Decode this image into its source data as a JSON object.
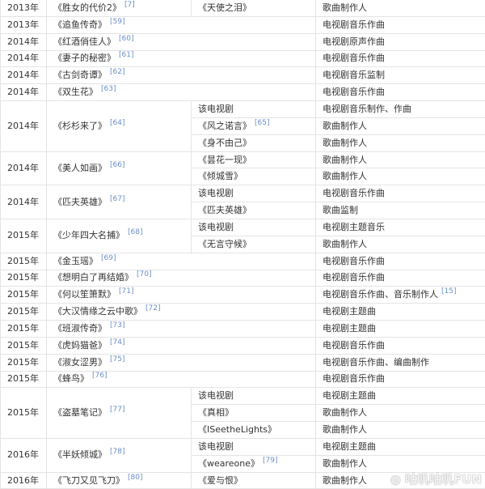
{
  "rows": [
    {
      "year": "2013年",
      "title": "《胜女的代价2》",
      "ref": "[7]",
      "songs": [
        {
          "song": "《天使之泪》",
          "role": "歌曲制作人"
        }
      ]
    },
    {
      "year": "2013年",
      "title": "《追鱼传奇》",
      "ref": "[59]",
      "role": "电视剧音乐作曲"
    },
    {
      "year": "2014年",
      "title": "《红酒俏佳人》",
      "ref": "[60]",
      "role": "电视剧原声作曲"
    },
    {
      "year": "2014年",
      "title": "《妻子的秘密》",
      "ref": "[61]",
      "role": "电视剧音乐作曲"
    },
    {
      "year": "2014年",
      "title": "《古剑奇谭》",
      "ref": "[62]",
      "role": "电视剧音乐监制"
    },
    {
      "year": "2014年",
      "title": "《双生花》",
      "ref": "[63]",
      "role": "电视剧音乐作曲"
    },
    {
      "year": "2014年",
      "title": "《杉杉来了》",
      "ref": "[64]",
      "songs": [
        {
          "song": "该电视剧",
          "role": "电视剧音乐制作、作曲"
        },
        {
          "song": "《风之诺言》",
          "ref": "[65]",
          "role": "歌曲制作人"
        },
        {
          "song": "《身不由己》",
          "role": "歌曲制作人"
        }
      ]
    },
    {
      "year": "2014年",
      "title": "《美人如画》",
      "ref": "[66]",
      "songs": [
        {
          "song": "《昙花一现》",
          "role": "歌曲制作人"
        },
        {
          "song": "《倾城雪》",
          "role": "歌曲制作人"
        }
      ]
    },
    {
      "year": "2014年",
      "title": "《匹夫英雄》",
      "ref": "[67]",
      "songs": [
        {
          "song": "该电视剧",
          "role": "电视剧音乐作曲"
        },
        {
          "song": "《匹夫英雄》",
          "role": "歌曲监制"
        }
      ]
    },
    {
      "year": "2015年",
      "title": "《少年四大名捕》",
      "ref": "[68]",
      "songs": [
        {
          "song": "该电视剧",
          "role": "电视剧主题音乐"
        },
        {
          "song": "《无言守候》",
          "role": "歌曲制作人"
        }
      ]
    },
    {
      "year": "2015年",
      "title": "《金玉瑶》",
      "ref": "[69]",
      "role": "电视剧音乐作曲"
    },
    {
      "year": "2015年",
      "title": "《想明白了再结婚》",
      "ref": "[70]",
      "role": "电视剧音乐作曲"
    },
    {
      "year": "2015年",
      "title": "《何以笙箫默》",
      "ref": "[71]",
      "role": "电视剧音乐作曲、音乐制作人",
      "role_ref": "[15]"
    },
    {
      "year": "2015年",
      "title": "《大汉情缘之云中歌》",
      "ref": "[72]",
      "role": "电视剧主题曲"
    },
    {
      "year": "2015年",
      "title": "《班淑传奇》",
      "ref": "[73]",
      "role": "电视剧主题曲"
    },
    {
      "year": "2015年",
      "title": "《虎妈猫爸》",
      "ref": "[74]",
      "role": "电视剧音乐作曲"
    },
    {
      "year": "2015年",
      "title": "《淑女涩男》",
      "ref": "[75]",
      "role": "电视剧音乐作曲、编曲制作"
    },
    {
      "year": "2015年",
      "title": "《蜂鸟》",
      "ref": "[76]",
      "role": "电视剧音乐作曲"
    },
    {
      "year": "2015年",
      "title": "《盗墓笔记》",
      "ref": "[77]",
      "songs": [
        {
          "song": "该电视剧",
          "role": "电视剧主题曲"
        },
        {
          "song": "《真相》",
          "role": "歌曲制作人"
        },
        {
          "song": "《ISeetheLights》",
          "role": "歌曲制作人"
        }
      ]
    },
    {
      "year": "2016年",
      "title": "《半妖倾城》",
      "ref": "[78]",
      "songs": [
        {
          "song": "该电视剧",
          "role": "电视剧主题曲"
        },
        {
          "song": "《weareone》",
          "ref": "[79]",
          "role": "歌曲制作人"
        }
      ]
    },
    {
      "year": "2016年",
      "title": "《飞刀又见飞刀》",
      "ref": "[80]",
      "songs": [
        {
          "song": "《爱与恨》",
          "role": "歌曲制作人"
        }
      ]
    }
  ],
  "watermark": "咕叽咕叽FUN",
  "colors": {
    "text": "#333333",
    "ref": "#6b8fc9",
    "border": "#e4e4e4"
  }
}
